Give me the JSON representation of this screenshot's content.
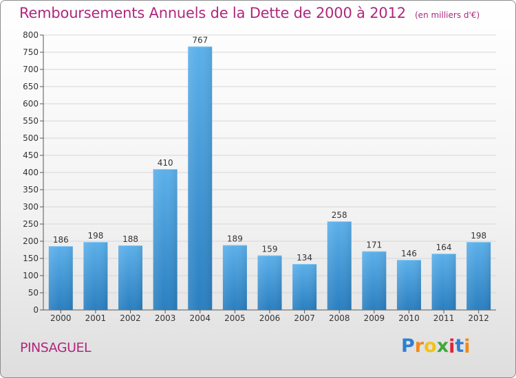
{
  "header": {
    "title": "Remboursements Annuels de la Dette de 2000 à 2012",
    "unit": "(en milliers d'€)"
  },
  "commune": "PINSAGUEL",
  "logo": {
    "text": "Proxiti",
    "letters": [
      {
        "ch": "P",
        "color": "#2f7fd0"
      },
      {
        "ch": "r",
        "color": "#f08a1c"
      },
      {
        "ch": "o",
        "color": "#f3c21a"
      },
      {
        "ch": "x",
        "color": "#3fa83c"
      },
      {
        "ch": "i",
        "color": "#e0243a"
      },
      {
        "ch": "t",
        "color": "#2f7fd0"
      },
      {
        "ch": "i",
        "color": "#f08a1c"
      }
    ]
  },
  "colors": {
    "accent": "#b0267e",
    "bar_light": "#5cb0ea",
    "bar_dark": "#2a7fc0",
    "grid": "#d6d6d6"
  },
  "chart_data": {
    "type": "bar",
    "title": "Remboursements Annuels de la Dette de 2000 à 2012",
    "categories": [
      "2000",
      "2001",
      "2002",
      "2003",
      "2004",
      "2005",
      "2006",
      "2007",
      "2008",
      "2009",
      "2010",
      "2011",
      "2012"
    ],
    "values": [
      186,
      198,
      188,
      410,
      767,
      189,
      159,
      134,
      258,
      171,
      146,
      164,
      198
    ],
    "ylim": [
      0,
      800
    ],
    "yticks": [
      0,
      50,
      100,
      150,
      200,
      250,
      300,
      350,
      400,
      450,
      500,
      550,
      600,
      650,
      700,
      750,
      800
    ],
    "grid": true,
    "data_labels": true
  }
}
